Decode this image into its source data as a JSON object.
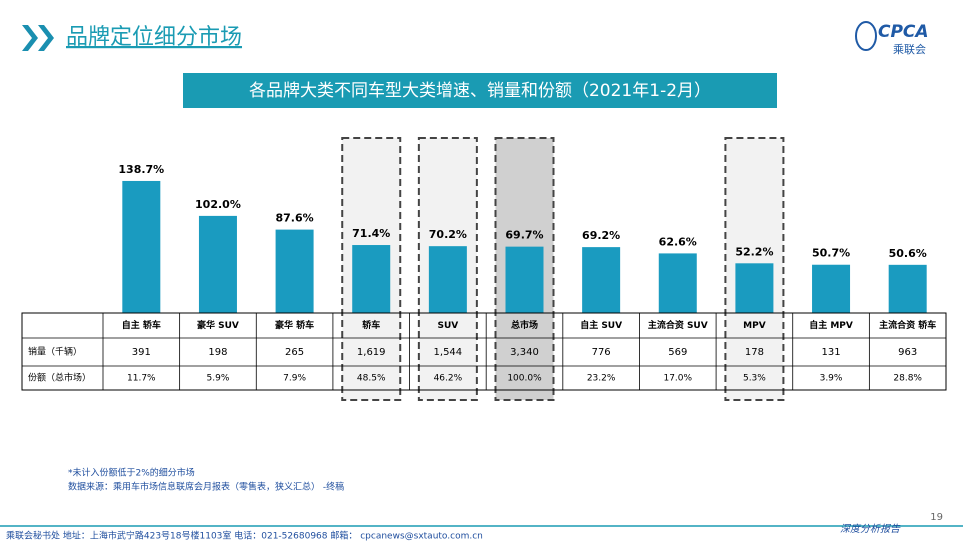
{
  "header": {
    "title": "品牌定位细分市场",
    "logo": "CPCA",
    "logo_sub": "乘联会"
  },
  "chart_data": {
    "type": "bar",
    "title": "各品牌大类不同车型大类增速、销量和份额（2021年1-2月）",
    "categories": [
      "自主 轿车",
      "豪华 SUV",
      "豪华 轿车",
      "轿车",
      "SUV",
      "总市场",
      "自主 SUV",
      "主流合资 SUV",
      "MPV",
      "自主 MPV",
      "主流合资 轿车"
    ],
    "values": [
      138.7,
      102.0,
      87.6,
      71.4,
      70.2,
      69.7,
      69.2,
      62.6,
      52.2,
      50.7,
      50.6
    ],
    "value_labels": [
      "138.7%",
      "102.0%",
      "87.6%",
      "71.4%",
      "70.2%",
      "69.7%",
      "69.2%",
      "62.6%",
      "52.2%",
      "50.7%",
      "50.6%"
    ],
    "color": "#1a9bc0"
  },
  "table": {
    "row_labels": [
      "销量（千辆）",
      "份额（总市场）"
    ],
    "rows": [
      [
        "391",
        "198",
        "265",
        "1,619",
        "1,544",
        "3,340",
        "776",
        "569",
        "178",
        "131",
        "963"
      ],
      [
        "11.7%",
        "5.9%",
        "7.9%",
        "48.5%",
        "46.2%",
        "100.0%",
        "23.2%",
        "17.0%",
        "5.3%",
        "3.9%",
        "28.8%"
      ]
    ]
  },
  "notes": [
    "*未计入份额低于2%的细分市场",
    "数据来源：乘用车市场信息联席会月报表（零售表，狭义汇总） -终稿"
  ],
  "footer": {
    "contact": "乘联会秘书处  地址：上海市武宁路423号18号楼1103室  电话：021-52680968  邮箱： cpcanews@sxtauto.com.cn",
    "tag": "深度分析报告",
    "page": "19"
  }
}
